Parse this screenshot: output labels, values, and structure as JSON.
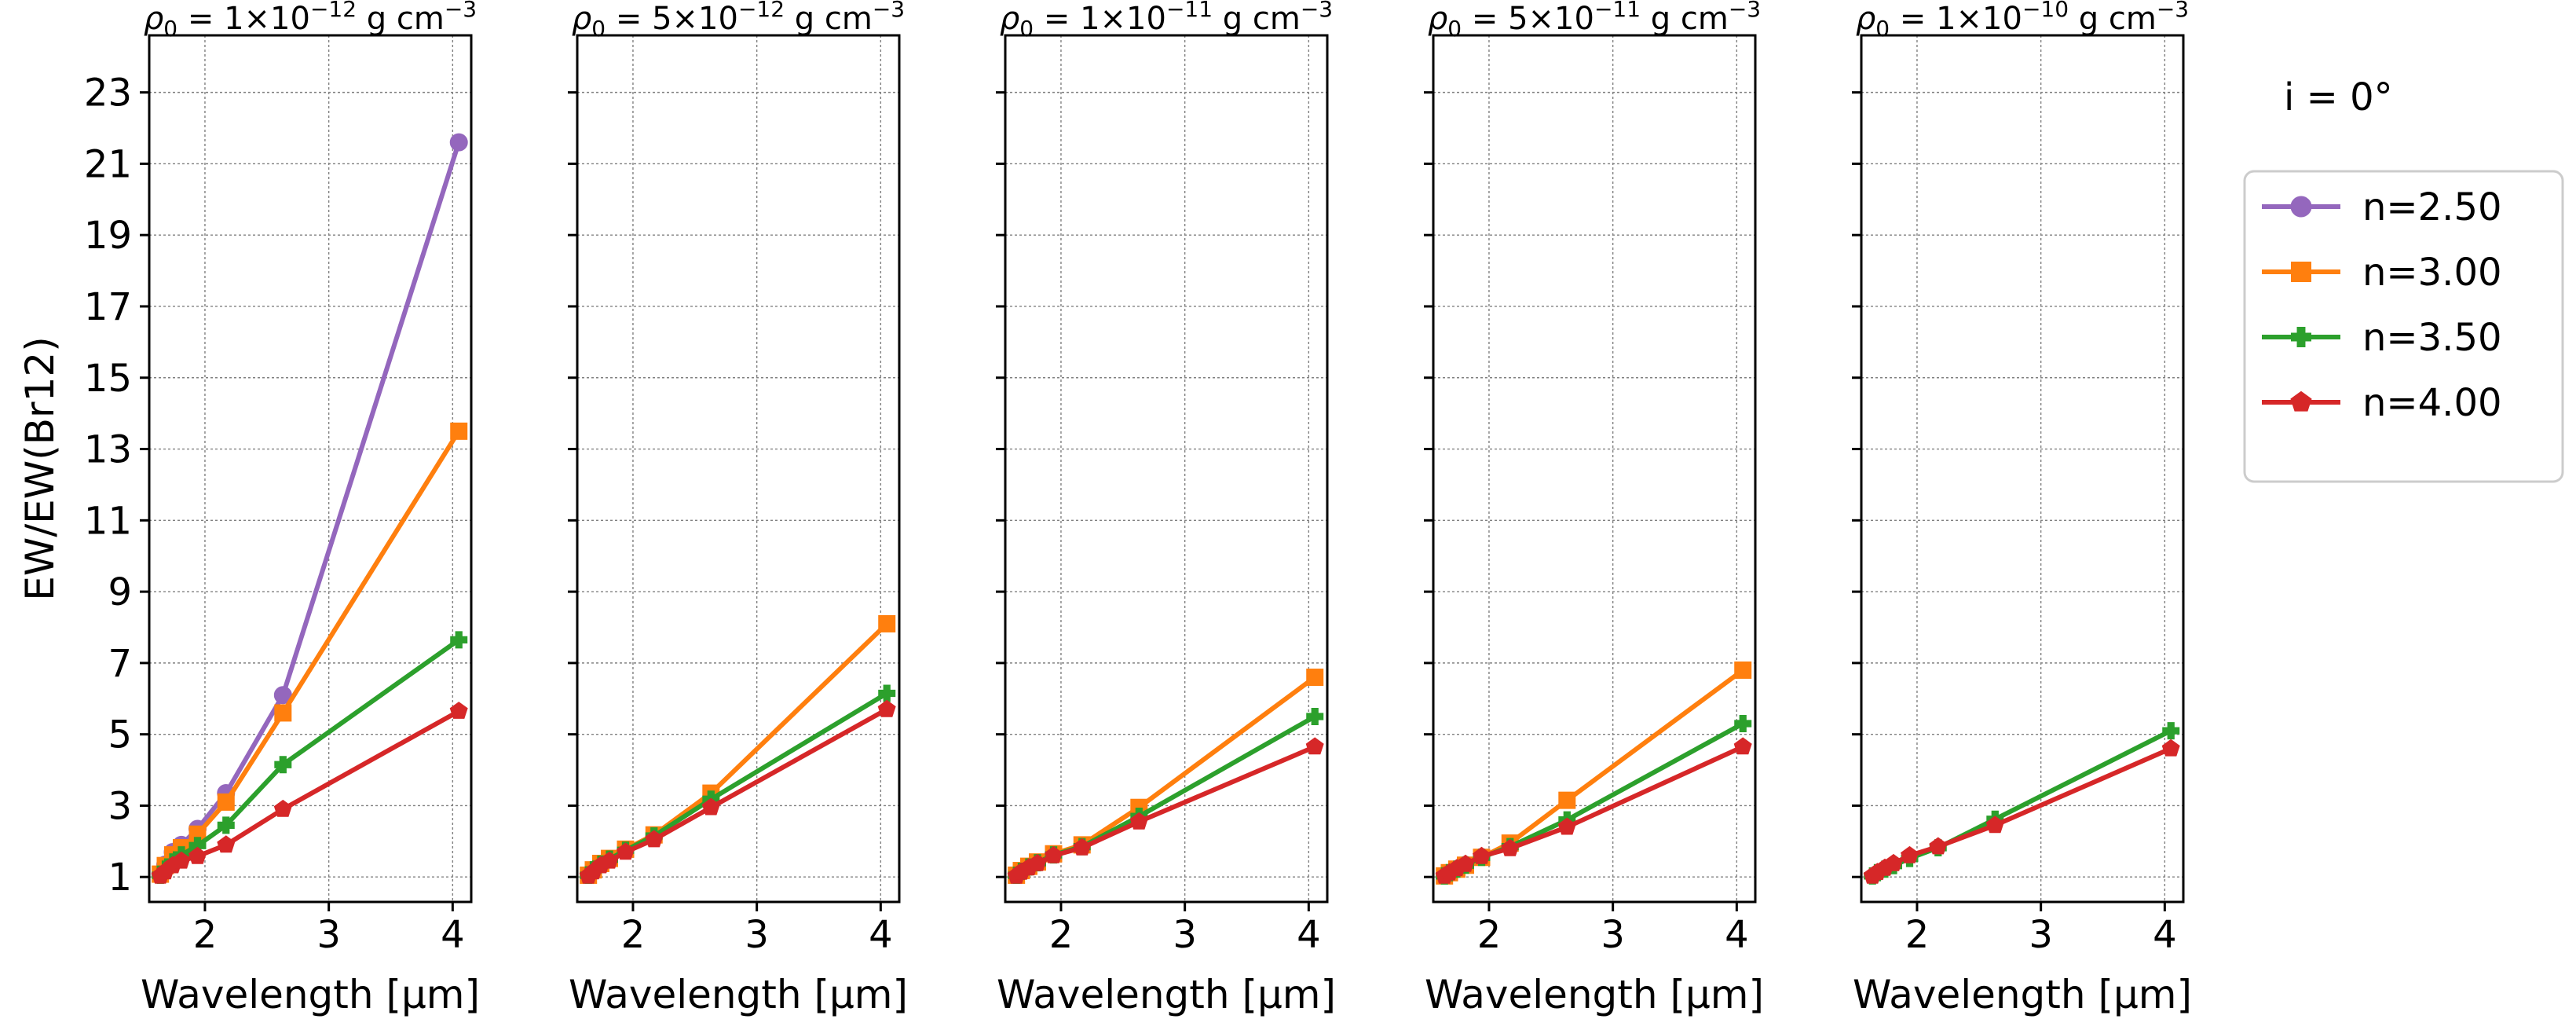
{
  "chart_data": {
    "type": "line",
    "shared_ylabel": "EW/EW(Br12)",
    "xlabel": "Wavelength [μm]",
    "xlim": [
      1.55,
      4.15
    ],
    "ylim": [
      0.3,
      24.6
    ],
    "xticks": [
      2,
      3,
      4
    ],
    "yticks": [
      1,
      3,
      5,
      7,
      9,
      11,
      13,
      15,
      17,
      19,
      21,
      23
    ],
    "grid": true,
    "legend_placement": "right",
    "legend_title": "i = 0°",
    "legend": [
      "n=2.50",
      "n=3.00",
      "n=3.50",
      "n=4.00"
    ],
    "colors": [
      "#9467bd",
      "#ff7f0e",
      "#2ca02c",
      "#d62728"
    ],
    "markers": [
      "circle",
      "square",
      "plus",
      "pentagon"
    ],
    "x": [
      1.64,
      1.68,
      1.74,
      1.81,
      1.94,
      2.17,
      2.63,
      4.05
    ],
    "panels": [
      {
        "title_prefix": "ρ",
        "title_sub": "0",
        "title_eq": " = 1×10",
        "title_exp": "−12",
        "title_unit": " g cm",
        "title_unit_exp": "−3",
        "series": [
          {
            "name": "n=2.50",
            "values": [
              1.08,
              1.35,
              1.7,
              1.9,
              2.35,
              3.35,
              6.1,
              21.6
            ]
          },
          {
            "name": "n=3.00",
            "values": [
              1.08,
              1.32,
              1.62,
              1.82,
              2.2,
              3.1,
              5.6,
              13.5
            ]
          },
          {
            "name": "n=3.50",
            "values": [
              1.05,
              1.22,
              1.42,
              1.62,
              1.88,
              2.45,
              4.15,
              7.65
            ]
          },
          {
            "name": "n=4.00",
            "values": [
              1.03,
              1.15,
              1.32,
              1.45,
              1.58,
              1.9,
              2.9,
              5.65
            ]
          }
        ]
      },
      {
        "title_prefix": "ρ",
        "title_sub": "0",
        "title_eq": " = 5×10",
        "title_exp": "−12",
        "title_unit": " g cm",
        "title_unit_exp": "−3",
        "series": [
          {
            "name": "n=3.00",
            "values": [
              1.05,
              1.2,
              1.38,
              1.52,
              1.78,
              2.18,
              3.35,
              8.1
            ]
          },
          {
            "name": "n=3.50",
            "values": [
              1.05,
              1.2,
              1.36,
              1.5,
              1.75,
              2.15,
              3.18,
              6.15
            ]
          },
          {
            "name": "n=4.00",
            "values": [
              1.03,
              1.15,
              1.32,
              1.45,
              1.7,
              2.05,
              2.95,
              5.7
            ]
          }
        ]
      },
      {
        "title_prefix": "ρ",
        "title_sub": "0",
        "title_eq": " = 1×10",
        "title_exp": "−11",
        "title_unit": " g cm",
        "title_unit_exp": "−3",
        "series": [
          {
            "name": "n=3.00",
            "values": [
              1.05,
              1.18,
              1.3,
              1.42,
              1.65,
              1.9,
              2.95,
              6.6
            ]
          },
          {
            "name": "n=3.50",
            "values": [
              1.05,
              1.16,
              1.28,
              1.4,
              1.62,
              1.85,
              2.7,
              5.5
            ]
          },
          {
            "name": "n=4.00",
            "values": [
              1.03,
              1.14,
              1.26,
              1.38,
              1.6,
              1.82,
              2.55,
              4.65
            ]
          }
        ]
      },
      {
        "title_prefix": "ρ",
        "title_sub": "0",
        "title_eq": " = 5×10",
        "title_exp": "−11",
        "title_unit": " g cm",
        "title_unit_exp": "−3",
        "series": [
          {
            "name": "n=3.00",
            "values": [
              1.03,
              1.12,
              1.22,
              1.33,
              1.55,
              1.95,
              3.15,
              6.8
            ]
          },
          {
            "name": "n=3.50",
            "values": [
              1.03,
              1.12,
              1.22,
              1.33,
              1.55,
              1.85,
              2.6,
              5.3
            ]
          },
          {
            "name": "n=4.00",
            "values": [
              1.03,
              1.12,
              1.24,
              1.36,
              1.58,
              1.8,
              2.4,
              4.65
            ]
          }
        ]
      },
      {
        "title_prefix": "ρ",
        "title_sub": "0",
        "title_eq": " = 1×10",
        "title_exp": "−10",
        "title_unit": " g cm",
        "title_unit_exp": "−3",
        "series": [
          {
            "name": "n=3.50",
            "values": [
              1.03,
              1.12,
              1.22,
              1.32,
              1.52,
              1.82,
              2.62,
              5.1
            ]
          },
          {
            "name": "n=4.00",
            "values": [
              1.03,
              1.13,
              1.25,
              1.38,
              1.6,
              1.85,
              2.45,
              4.6
            ]
          }
        ]
      }
    ]
  }
}
